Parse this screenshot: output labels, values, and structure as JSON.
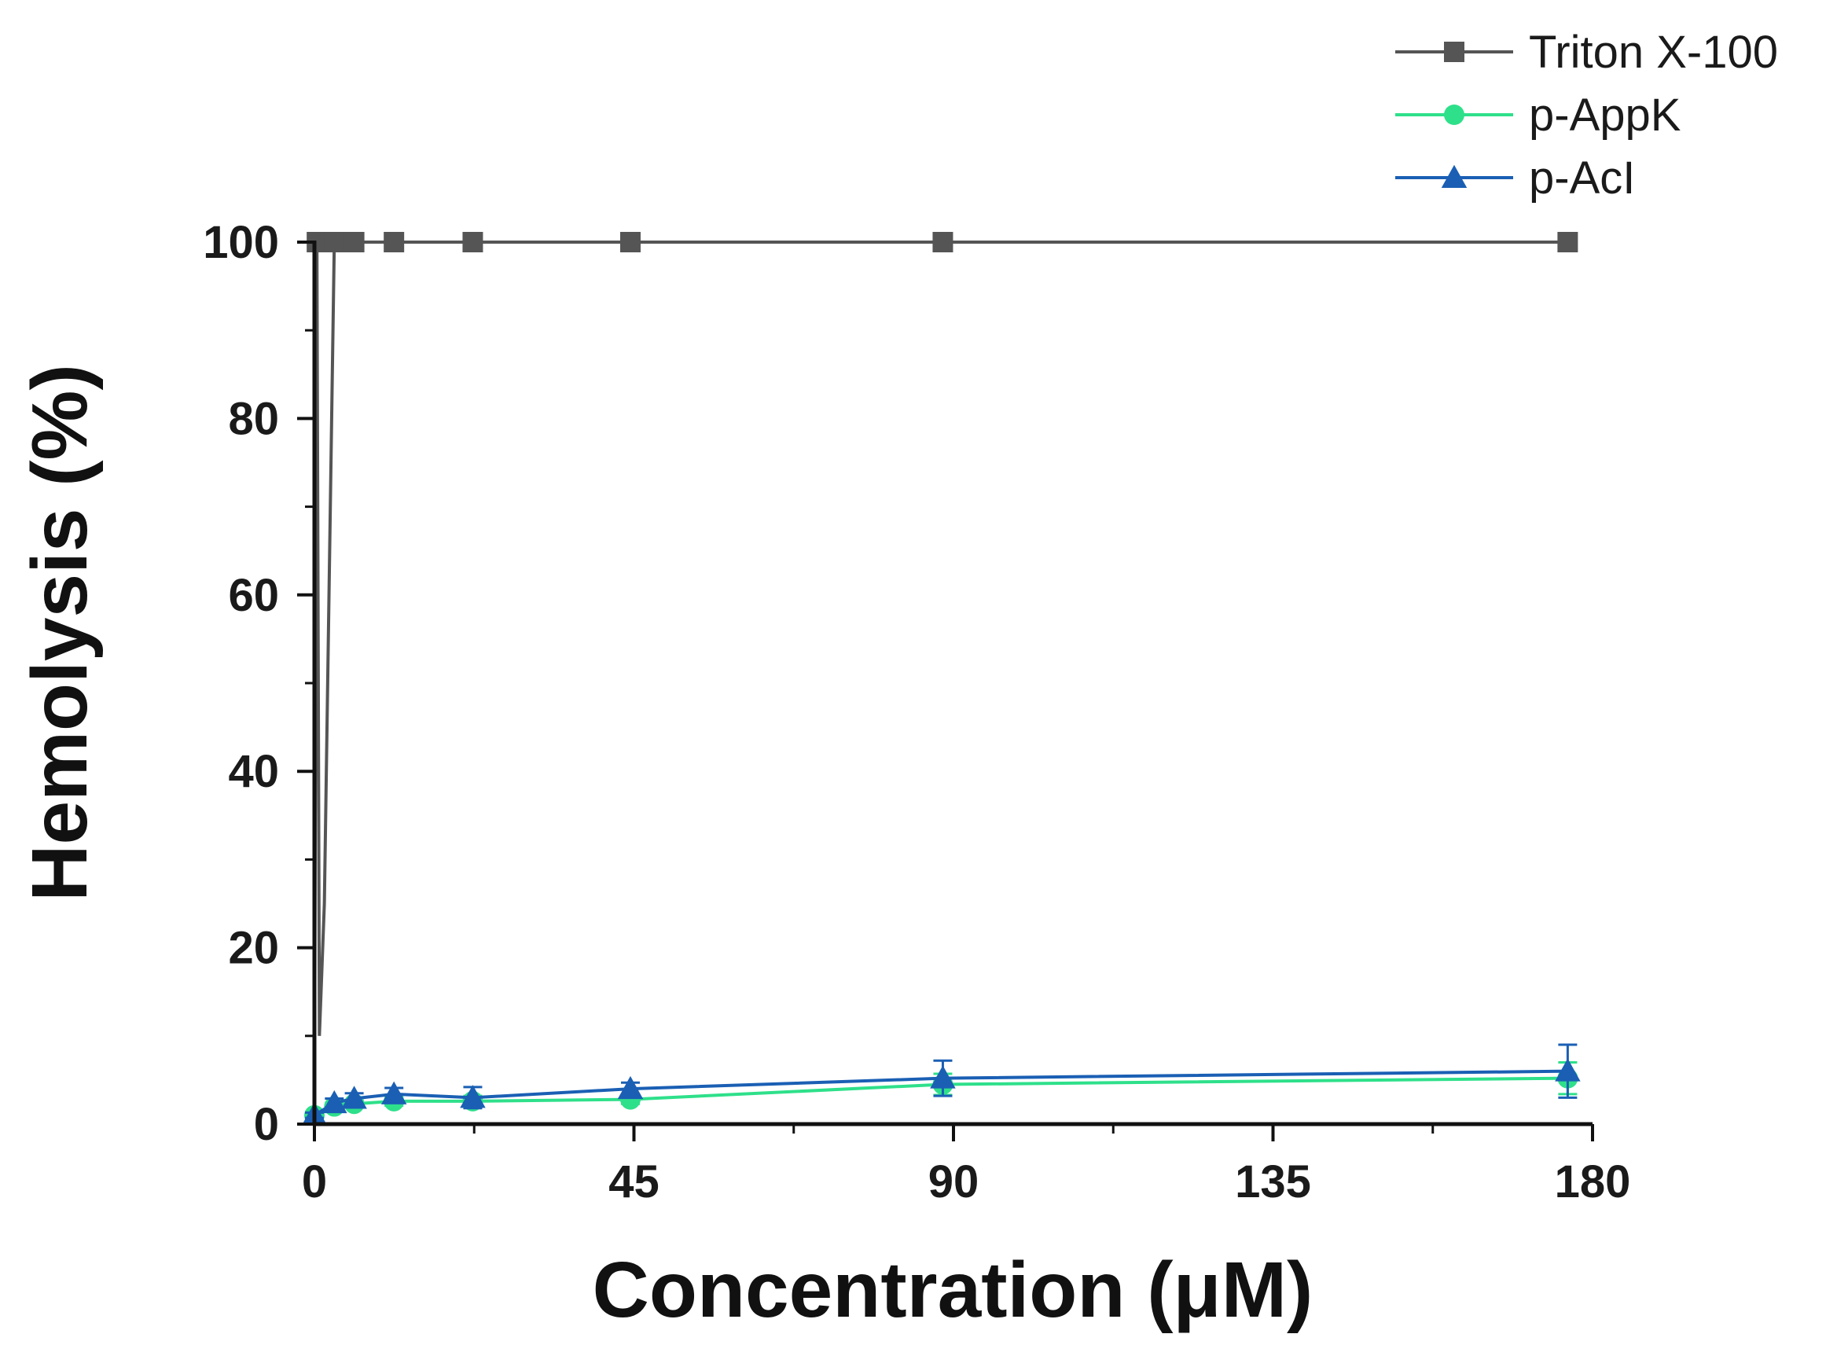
{
  "chart_data": {
    "type": "line",
    "title": "",
    "xlabel": "Concentration (μM)",
    "ylabel": "Hemolysis (%)",
    "xlim": [
      0,
      180
    ],
    "ylim": [
      0,
      100
    ],
    "xticks": [
      0,
      45,
      90,
      135,
      180
    ],
    "yticks": [
      0,
      20,
      40,
      60,
      80,
      100
    ],
    "grid": false,
    "legend_position": "top-right",
    "series": [
      {
        "name": "Triton X-100",
        "color": "#555555",
        "marker": "square",
        "x": [
          0,
          0.35,
          0.7,
          1.4,
          2.8,
          5.6,
          11.2,
          22.3,
          44.5,
          88.5,
          176.5
        ],
        "y": [
          0,
          100,
          10,
          25,
          100,
          100,
          100,
          100,
          100,
          100,
          100
        ],
        "err": []
      },
      {
        "name": "p-AppK",
        "color": "#2ee08a",
        "marker": "circle",
        "x": [
          0,
          2.8,
          5.6,
          11.2,
          22.3,
          44.5,
          88.5,
          176.5
        ],
        "y": [
          1,
          2,
          2.3,
          2.6,
          2.6,
          2.8,
          4.5,
          5.2
        ],
        "err": [
          0.3,
          0.4,
          0.4,
          0.5,
          0.6,
          0.5,
          1.2,
          1.8
        ]
      },
      {
        "name": "p-AcI",
        "color": "#1a5fb4",
        "marker": "triangle",
        "x": [
          0,
          2.8,
          5.6,
          11.2,
          22.3,
          44.5,
          88.5,
          176.5
        ],
        "y": [
          1,
          2.4,
          2.9,
          3.4,
          3,
          4,
          5.2,
          6
        ],
        "err": [
          0.3,
          0.5,
          0.6,
          0.7,
          1.2,
          0.7,
          2,
          3
        ]
      }
    ]
  }
}
